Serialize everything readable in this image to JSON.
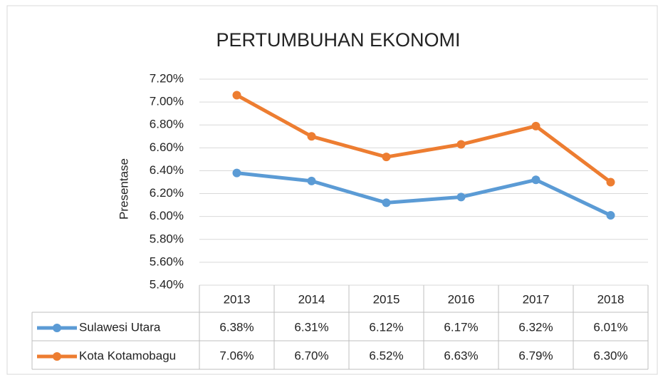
{
  "chart_data": {
    "type": "line",
    "title": "PERTUMBUHAN EKONOMI",
    "y_label": "Presentase",
    "categories": [
      "2013",
      "2014",
      "2015",
      "2016",
      "2017",
      "2018"
    ],
    "series": [
      {
        "name": "Sulawesi Utara",
        "color": "#5b9bd5",
        "values": [
          6.38,
          6.31,
          6.12,
          6.17,
          6.32,
          6.01
        ],
        "value_labels": [
          "6.38%",
          "6.31%",
          "6.12%",
          "6.17%",
          "6.32%",
          "6.01%"
        ]
      },
      {
        "name": "Kota Kotamobagu",
        "color": "#ed7d31",
        "values": [
          7.06,
          6.7,
          6.52,
          6.63,
          6.79,
          6.3
        ],
        "value_labels": [
          "7.06%",
          "6.70%",
          "6.52%",
          "6.63%",
          "6.79%",
          "6.30%"
        ]
      }
    ],
    "ylim": [
      5.4,
      7.2
    ],
    "yticks": [
      {
        "value": 5.4,
        "label": "5.40%"
      },
      {
        "value": 5.6,
        "label": "5.60%"
      },
      {
        "value": 5.8,
        "label": "5.80%"
      },
      {
        "value": 6.0,
        "label": "6.00%"
      },
      {
        "value": 6.2,
        "label": "6.20%"
      },
      {
        "value": 6.4,
        "label": "6.40%"
      },
      {
        "value": 6.6,
        "label": "6.60%"
      },
      {
        "value": 6.8,
        "label": "6.80%"
      },
      {
        "value": 7.0,
        "label": "7.00%"
      },
      {
        "value": 7.2,
        "label": "7.20%"
      }
    ],
    "grid": true
  }
}
